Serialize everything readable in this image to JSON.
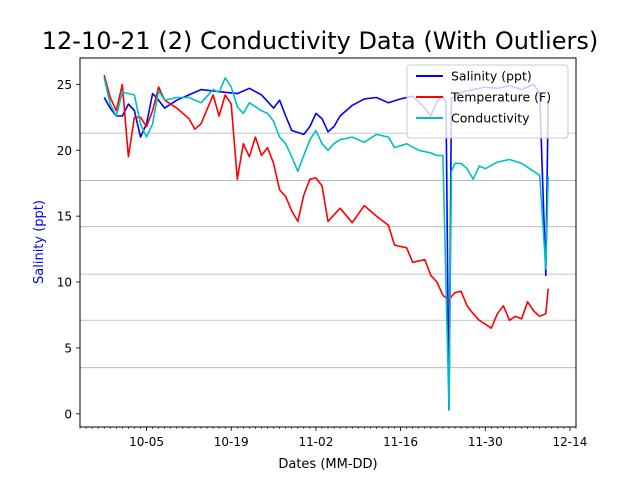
{
  "chart_data": {
    "type": "line",
    "title": "12-10-21 (2) Conductivity Data (With Outliers)",
    "xlabel": "Dates (MM-DD)",
    "ylabel": "Salinity (ppt)",
    "ylabel_color": "#0000ff",
    "xlim": [
      "2021-09-24",
      "2021-12-15"
    ],
    "ylim": [
      -1,
      27
    ],
    "x_ticks": [
      "10-05",
      "10-19",
      "11-02",
      "11-16",
      "11-30",
      "12-14"
    ],
    "y_ticks": [
      0,
      5,
      10,
      15,
      20,
      25
    ],
    "grid": {
      "horizontal": true,
      "y_values": [
        3.5,
        7.1,
        10.6,
        14.2,
        17.7,
        21.3
      ]
    },
    "legend": {
      "position": "top-right"
    },
    "series": [
      {
        "name": "Salinity (ppt)",
        "color": "#0000ff",
        "points": [
          [
            "2021-09-28",
            24.0
          ],
          [
            "2021-09-29",
            23.2
          ],
          [
            "2021-09-30",
            22.6
          ],
          [
            "2021-10-01",
            22.6
          ],
          [
            "2021-10-02",
            23.5
          ],
          [
            "2021-10-03",
            23.0
          ],
          [
            "2021-10-04",
            21.0
          ],
          [
            "2021-10-05",
            22.0
          ],
          [
            "2021-10-06",
            24.3
          ],
          [
            "2021-10-07",
            23.8
          ],
          [
            "2021-10-08",
            23.2
          ],
          [
            "2021-10-10",
            23.8
          ],
          [
            "2021-10-12",
            24.2
          ],
          [
            "2021-10-14",
            24.6
          ],
          [
            "2021-10-16",
            24.5
          ],
          [
            "2021-10-18",
            24.4
          ],
          [
            "2021-10-20",
            24.3
          ],
          [
            "2021-10-22",
            24.7
          ],
          [
            "2021-10-24",
            24.2
          ],
          [
            "2021-10-26",
            23.2
          ],
          [
            "2021-10-27",
            23.8
          ],
          [
            "2021-10-28",
            22.6
          ],
          [
            "2021-10-29",
            21.5
          ],
          [
            "2021-10-31",
            21.2
          ],
          [
            "2021-11-01",
            21.8
          ],
          [
            "2021-11-02",
            22.8
          ],
          [
            "2021-11-03",
            22.4
          ],
          [
            "2021-11-04",
            21.4
          ],
          [
            "2021-11-05",
            21.8
          ],
          [
            "2021-11-06",
            22.6
          ],
          [
            "2021-11-08",
            23.4
          ],
          [
            "2021-11-10",
            23.9
          ],
          [
            "2021-11-12",
            24.0
          ],
          [
            "2021-11-14",
            23.6
          ],
          [
            "2021-11-16",
            23.9
          ],
          [
            "2021-11-18",
            24.1
          ],
          [
            "2021-11-20",
            23.2
          ],
          [
            "2021-11-21",
            22.6
          ],
          [
            "2021-11-22",
            23.7
          ],
          [
            "2021-11-23",
            24.1
          ],
          [
            "2021-11-23.5",
            23.6
          ],
          [
            "2021-11-24",
            0.3
          ],
          [
            "2021-11-24.4",
            23.9
          ],
          [
            "2021-11-26",
            24.4
          ],
          [
            "2021-11-28",
            24.6
          ],
          [
            "2021-11-30",
            24.8
          ],
          [
            "2021-12-02",
            24.7
          ],
          [
            "2021-12-04",
            24.9
          ],
          [
            "2021-12-06",
            24.6
          ],
          [
            "2021-12-08",
            25.0
          ],
          [
            "2021-12-09",
            24.3
          ],
          [
            "2021-12-10",
            10.5
          ],
          [
            "2021-12-10.4",
            23.8
          ]
        ]
      },
      {
        "name": "Temperature (F)",
        "color": "#ff0000",
        "points": [
          [
            "2021-09-28",
            25.7
          ],
          [
            "2021-09-29",
            24.0
          ],
          [
            "2021-09-30",
            23.0
          ],
          [
            "2021-10-01",
            25.0
          ],
          [
            "2021-10-02",
            19.5
          ],
          [
            "2021-10-03",
            22.5
          ],
          [
            "2021-10-04",
            22.5
          ],
          [
            "2021-10-05",
            21.8
          ],
          [
            "2021-10-06",
            23.0
          ],
          [
            "2021-10-07",
            24.8
          ],
          [
            "2021-10-08",
            23.8
          ],
          [
            "2021-10-10",
            23.2
          ],
          [
            "2021-10-12",
            22.4
          ],
          [
            "2021-10-13",
            21.6
          ],
          [
            "2021-10-14",
            22.0
          ],
          [
            "2021-10-16",
            24.2
          ],
          [
            "2021-10-17",
            22.6
          ],
          [
            "2021-10-18",
            24.2
          ],
          [
            "2021-10-19",
            23.5
          ],
          [
            "2021-10-20",
            17.8
          ],
          [
            "2021-10-21",
            20.5
          ],
          [
            "2021-10-22",
            19.5
          ],
          [
            "2021-10-23",
            21.0
          ],
          [
            "2021-10-24",
            19.6
          ],
          [
            "2021-10-25",
            20.2
          ],
          [
            "2021-10-26",
            19.0
          ],
          [
            "2021-10-27",
            17.0
          ],
          [
            "2021-10-28",
            16.5
          ],
          [
            "2021-10-29",
            15.4
          ],
          [
            "2021-10-30",
            14.6
          ],
          [
            "2021-10-31",
            16.6
          ],
          [
            "2021-11-01",
            17.8
          ],
          [
            "2021-11-02",
            17.9
          ],
          [
            "2021-11-03",
            17.3
          ],
          [
            "2021-11-04",
            14.6
          ],
          [
            "2021-11-06",
            15.6
          ],
          [
            "2021-11-08",
            14.5
          ],
          [
            "2021-11-10",
            15.8
          ],
          [
            "2021-11-12",
            15.0
          ],
          [
            "2021-11-14",
            14.3
          ],
          [
            "2021-11-15",
            12.8
          ],
          [
            "2021-11-17",
            12.6
          ],
          [
            "2021-11-18",
            11.5
          ],
          [
            "2021-11-20",
            11.7
          ],
          [
            "2021-11-21",
            10.5
          ],
          [
            "2021-11-22",
            10.0
          ],
          [
            "2021-11-23",
            9.0
          ],
          [
            "2021-11-24",
            8.6
          ],
          [
            "2021-11-24.4",
            8.9
          ],
          [
            "2021-11-25",
            9.2
          ],
          [
            "2021-11-26",
            9.3
          ],
          [
            "2021-11-27",
            8.2
          ],
          [
            "2021-11-28",
            7.6
          ],
          [
            "2021-11-29",
            7.1
          ],
          [
            "2021-11-30",
            6.8
          ],
          [
            "2021-12-01",
            6.5
          ],
          [
            "2021-12-02",
            7.6
          ],
          [
            "2021-12-03",
            8.2
          ],
          [
            "2021-12-04",
            7.1
          ],
          [
            "2021-12-05",
            7.4
          ],
          [
            "2021-12-06",
            7.2
          ],
          [
            "2021-12-07",
            8.5
          ],
          [
            "2021-12-08",
            7.8
          ],
          [
            "2021-12-09",
            7.4
          ],
          [
            "2021-12-10",
            7.6
          ],
          [
            "2021-12-10.4",
            9.5
          ]
        ]
      },
      {
        "name": "Conductivity",
        "color": "#00bfbf",
        "points": [
          [
            "2021-09-28",
            25.5
          ],
          [
            "2021-09-29",
            23.5
          ],
          [
            "2021-09-30",
            22.6
          ],
          [
            "2021-10-01",
            24.4
          ],
          [
            "2021-10-02",
            24.3
          ],
          [
            "2021-10-03",
            24.2
          ],
          [
            "2021-10-04",
            22.0
          ],
          [
            "2021-10-05",
            21.0
          ],
          [
            "2021-10-06",
            22.0
          ],
          [
            "2021-10-07",
            24.5
          ],
          [
            "2021-10-08",
            23.8
          ],
          [
            "2021-10-10",
            24.0
          ],
          [
            "2021-10-12",
            24.0
          ],
          [
            "2021-10-14",
            23.6
          ],
          [
            "2021-10-16",
            24.6
          ],
          [
            "2021-10-17",
            24.4
          ],
          [
            "2021-10-18",
            25.5
          ],
          [
            "2021-10-19",
            24.8
          ],
          [
            "2021-10-20",
            23.3
          ],
          [
            "2021-10-21",
            22.8
          ],
          [
            "2021-10-22",
            23.6
          ],
          [
            "2021-10-24",
            23.0
          ],
          [
            "2021-10-25",
            22.8
          ],
          [
            "2021-10-26",
            22.2
          ],
          [
            "2021-10-27",
            21.0
          ],
          [
            "2021-10-28",
            20.5
          ],
          [
            "2021-10-29",
            19.5
          ],
          [
            "2021-10-30",
            18.4
          ],
          [
            "2021-10-31",
            19.6
          ],
          [
            "2021-11-01",
            20.8
          ],
          [
            "2021-11-02",
            21.5
          ],
          [
            "2021-11-03",
            20.5
          ],
          [
            "2021-11-04",
            20.0
          ],
          [
            "2021-11-05",
            20.5
          ],
          [
            "2021-11-06",
            20.8
          ],
          [
            "2021-11-08",
            21.0
          ],
          [
            "2021-11-10",
            20.6
          ],
          [
            "2021-11-12",
            21.2
          ],
          [
            "2021-11-14",
            21.0
          ],
          [
            "2021-11-15",
            20.2
          ],
          [
            "2021-11-17",
            20.5
          ],
          [
            "2021-11-19",
            20.0
          ],
          [
            "2021-11-21",
            19.8
          ],
          [
            "2021-11-22",
            19.6
          ],
          [
            "2021-11-23",
            19.6
          ],
          [
            "2021-11-24",
            0.3
          ],
          [
            "2021-11-24.4",
            18.4
          ],
          [
            "2021-11-25",
            19.0
          ],
          [
            "2021-11-26",
            19.0
          ],
          [
            "2021-11-27",
            18.6
          ],
          [
            "2021-11-28",
            17.8
          ],
          [
            "2021-11-29",
            18.8
          ],
          [
            "2021-11-30",
            18.6
          ],
          [
            "2021-12-02",
            19.1
          ],
          [
            "2021-12-04",
            19.3
          ],
          [
            "2021-12-06",
            19.0
          ],
          [
            "2021-12-08",
            18.4
          ],
          [
            "2021-12-09",
            18.1
          ],
          [
            "2021-12-10",
            11.0
          ],
          [
            "2021-12-10.4",
            18.0
          ]
        ]
      }
    ]
  }
}
